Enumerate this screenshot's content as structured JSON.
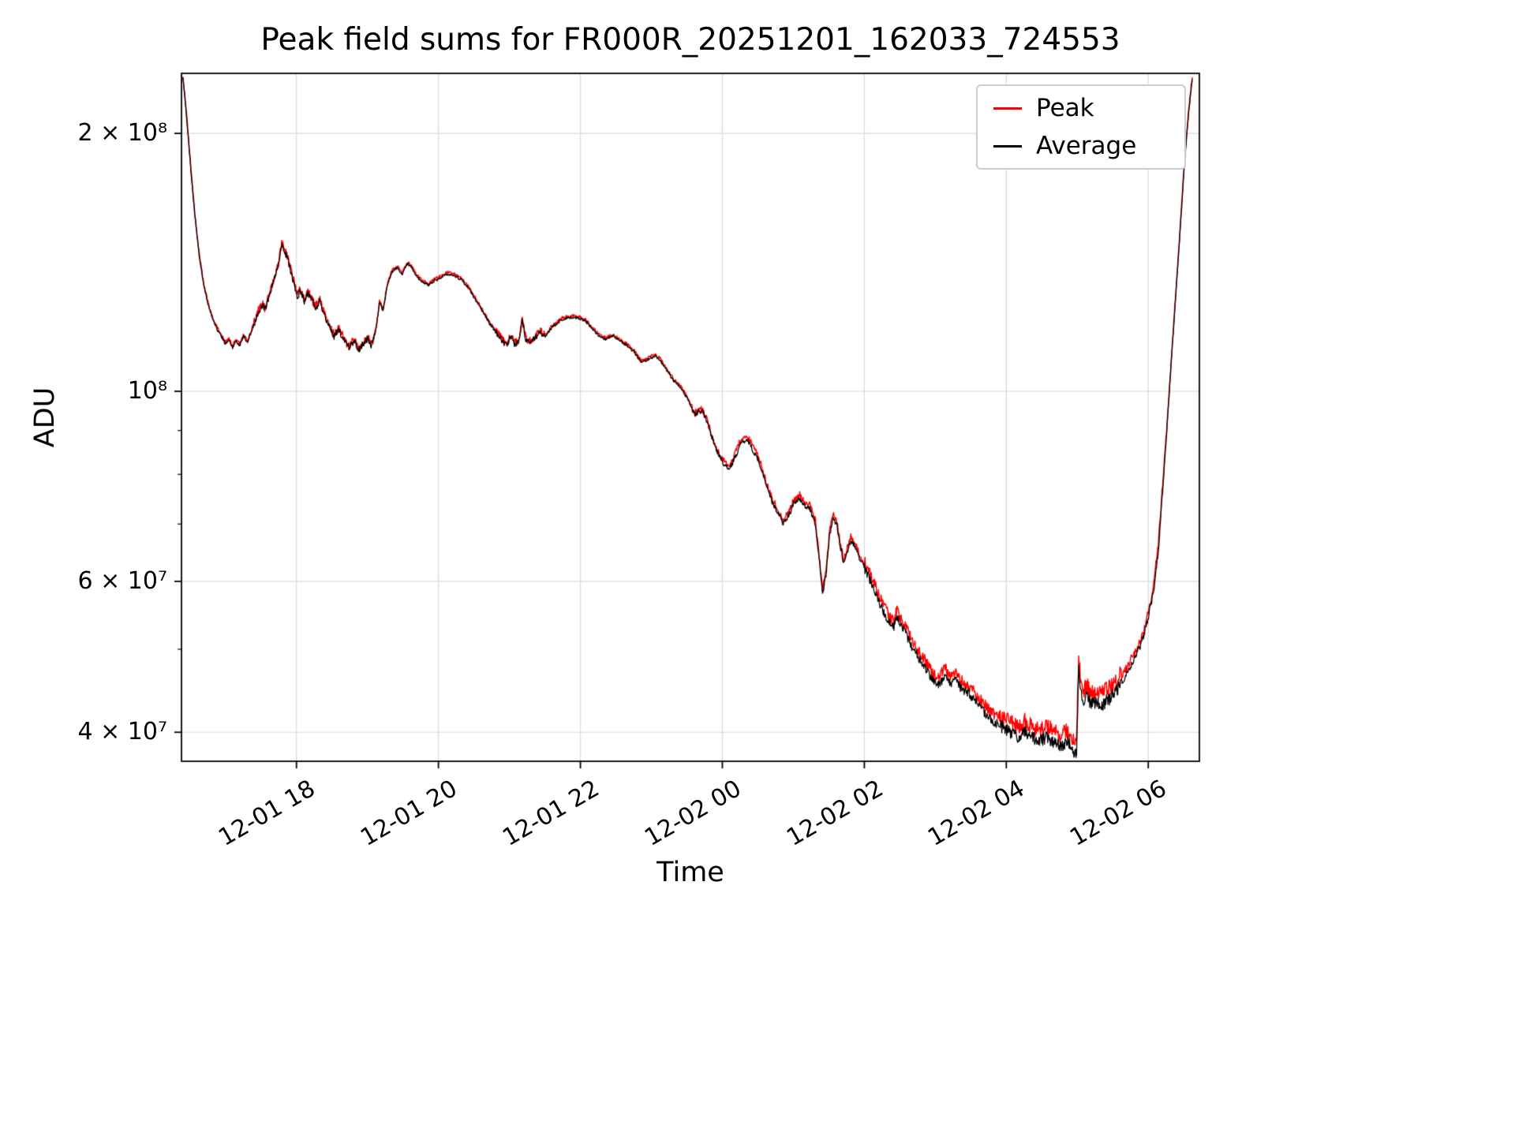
{
  "chart_data": {
    "type": "line",
    "title": "Peak field sums for FR000R_20251201_162033_724553",
    "xlabel": "Time",
    "ylabel": "ADU",
    "yscale": "log",
    "grid": true,
    "grid_color": "#d9d9d9",
    "legend_position": "upper right",
    "value_scale": 1000000,
    "values_unit": "millions of ADU",
    "x_reference": "hours since 12-01 16:00",
    "xlim_hours": [
      0.38,
      14.72
    ],
    "ylim": [
      37,
      235
    ],
    "xticks": [
      {
        "t": 2,
        "label": "12-01 18"
      },
      {
        "t": 4,
        "label": "12-01 20"
      },
      {
        "t": 6,
        "label": "12-01 22"
      },
      {
        "t": 8,
        "label": "12-02 00"
      },
      {
        "t": 10,
        "label": "12-02 02"
      },
      {
        "t": 12,
        "label": "12-02 04"
      },
      {
        "t": 14,
        "label": "12-02 06"
      }
    ],
    "yticks": [
      {
        "value": 200,
        "label": "2 × 10⁸"
      },
      {
        "value": 100,
        "label": "10⁸"
      },
      {
        "value": 60,
        "label": "6 × 10⁷"
      },
      {
        "value": 40,
        "label": "4 × 10⁷"
      }
    ],
    "yticks_minor": [
      50,
      70,
      80,
      90
    ],
    "series": [
      {
        "name": "Peak",
        "color": "#ff0000",
        "derived_from": "Average",
        "ratio_segments": [
          [
            0,
            8,
            1.004
          ],
          [
            8,
            10,
            1.01
          ],
          [
            10,
            11,
            1.018
          ],
          [
            11,
            12,
            1.022
          ],
          [
            12,
            13.62,
            1.03
          ],
          [
            13.62,
            14.25,
            1.016
          ],
          [
            14.25,
            14.75,
            1.005
          ]
        ]
      },
      {
        "name": "Average",
        "color": "#000000",
        "points": [
          [
            0.4,
            232
          ],
          [
            0.44,
            215
          ],
          [
            0.48,
            196
          ],
          [
            0.52,
            178
          ],
          [
            0.57,
            160
          ],
          [
            0.63,
            144
          ],
          [
            0.7,
            132
          ],
          [
            0.78,
            124
          ],
          [
            0.86,
            119
          ],
          [
            0.94,
            116
          ],
          [
            1.0,
            113.5
          ],
          [
            1.05,
            115
          ],
          [
            1.1,
            112.5
          ],
          [
            1.15,
            114.5
          ],
          [
            1.2,
            113
          ],
          [
            1.26,
            116
          ],
          [
            1.31,
            114
          ],
          [
            1.36,
            117
          ],
          [
            1.42,
            121
          ],
          [
            1.47,
            124
          ],
          [
            1.52,
            126
          ],
          [
            1.56,
            124.5
          ],
          [
            1.61,
            129
          ],
          [
            1.66,
            133
          ],
          [
            1.71,
            137
          ],
          [
            1.75,
            141
          ],
          [
            1.79,
            148
          ],
          [
            1.83,
            146
          ],
          [
            1.87,
            143
          ],
          [
            1.91,
            139
          ],
          [
            1.96,
            134
          ],
          [
            2.01,
            129
          ],
          [
            2.06,
            131
          ],
          [
            2.11,
            127.5
          ],
          [
            2.16,
            130.5
          ],
          [
            2.21,
            128
          ],
          [
            2.27,
            125
          ],
          [
            2.33,
            127.5
          ],
          [
            2.39,
            123
          ],
          [
            2.46,
            119
          ],
          [
            2.53,
            116
          ],
          [
            2.6,
            118
          ],
          [
            2.67,
            114.5
          ],
          [
            2.74,
            112.5
          ],
          [
            2.81,
            114.5
          ],
          [
            2.88,
            112
          ],
          [
            2.94,
            113.5
          ],
          [
            3.0,
            115
          ],
          [
            3.06,
            113
          ],
          [
            3.12,
            118
          ],
          [
            3.17,
            127
          ],
          [
            3.22,
            124
          ],
          [
            3.28,
            133
          ],
          [
            3.35,
            138
          ],
          [
            3.42,
            139.5
          ],
          [
            3.49,
            137
          ],
          [
            3.56,
            141
          ],
          [
            3.62,
            139.5
          ],
          [
            3.7,
            136
          ],
          [
            3.78,
            134
          ],
          [
            3.86,
            133
          ],
          [
            3.94,
            134.5
          ],
          [
            4.02,
            135.5
          ],
          [
            4.12,
            137
          ],
          [
            4.22,
            136.5
          ],
          [
            4.32,
            135
          ],
          [
            4.42,
            132
          ],
          [
            4.52,
            128
          ],
          [
            4.62,
            124
          ],
          [
            4.72,
            120
          ],
          [
            4.82,
            117
          ],
          [
            4.9,
            114.5
          ],
          [
            4.97,
            113
          ],
          [
            5.02,
            116
          ],
          [
            5.07,
            113.5
          ],
          [
            5.13,
            114
          ],
          [
            5.18,
            121
          ],
          [
            5.23,
            115
          ],
          [
            5.29,
            114
          ],
          [
            5.36,
            115.5
          ],
          [
            5.43,
            117
          ],
          [
            5.51,
            116
          ],
          [
            5.59,
            118.5
          ],
          [
            5.67,
            120
          ],
          [
            5.76,
            121.5
          ],
          [
            5.86,
            122
          ],
          [
            5.96,
            121.8
          ],
          [
            6.06,
            121
          ],
          [
            6.16,
            118.5
          ],
          [
            6.26,
            116
          ],
          [
            6.36,
            115
          ],
          [
            6.46,
            116
          ],
          [
            6.56,
            114.5
          ],
          [
            6.66,
            113
          ],
          [
            6.76,
            111
          ],
          [
            6.86,
            108
          ],
          [
            6.96,
            109
          ],
          [
            7.06,
            110
          ],
          [
            7.13,
            108.5
          ],
          [
            7.21,
            106
          ],
          [
            7.31,
            103
          ],
          [
            7.41,
            101
          ],
          [
            7.51,
            98
          ],
          [
            7.61,
            94
          ],
          [
            7.71,
            95
          ],
          [
            7.79,
            92
          ],
          [
            7.86,
            88
          ],
          [
            7.93,
            85
          ],
          [
            8.01,
            82.5
          ],
          [
            8.09,
            81
          ],
          [
            8.16,
            83
          ],
          [
            8.26,
            87
          ],
          [
            8.34,
            88
          ],
          [
            8.41,
            86
          ],
          [
            8.51,
            83
          ],
          [
            8.61,
            78
          ],
          [
            8.71,
            74
          ],
          [
            8.79,
            72
          ],
          [
            8.86,
            70
          ],
          [
            8.93,
            71.5
          ],
          [
            9.01,
            74
          ],
          [
            9.09,
            75
          ],
          [
            9.16,
            73.5
          ],
          [
            9.23,
            73
          ],
          [
            9.31,
            70
          ],
          [
            9.36,
            64
          ],
          [
            9.41,
            58
          ],
          [
            9.46,
            61
          ],
          [
            9.51,
            68
          ],
          [
            9.56,
            71
          ],
          [
            9.61,
            70
          ],
          [
            9.66,
            66
          ],
          [
            9.71,
            63
          ],
          [
            9.76,
            65
          ],
          [
            9.81,
            67
          ],
          [
            9.86,
            66
          ],
          [
            9.93,
            64
          ],
          [
            10.01,
            62
          ],
          [
            10.09,
            60
          ],
          [
            10.16,
            58
          ],
          [
            10.26,
            55.5
          ],
          [
            10.33,
            54
          ],
          [
            10.41,
            53
          ],
          [
            10.46,
            54.5
          ],
          [
            10.51,
            53.5
          ],
          [
            10.59,
            52
          ],
          [
            10.66,
            50.5
          ],
          [
            10.76,
            49
          ],
          [
            10.86,
            47.5
          ],
          [
            10.96,
            46
          ],
          [
            11.06,
            45.5
          ],
          [
            11.13,
            46.5
          ],
          [
            11.21,
            45.5
          ],
          [
            11.29,
            46
          ],
          [
            11.36,
            45
          ],
          [
            11.46,
            44.5
          ],
          [
            11.56,
            43.5
          ],
          [
            11.66,
            42.5
          ],
          [
            11.76,
            41.5
          ],
          [
            11.86,
            41
          ],
          [
            11.96,
            40.5
          ],
          [
            12.06,
            40
          ],
          [
            12.16,
            39.5
          ],
          [
            12.26,
            40
          ],
          [
            12.36,
            39.5
          ],
          [
            12.46,
            39
          ],
          [
            12.56,
            39.5
          ],
          [
            12.66,
            39
          ],
          [
            12.76,
            38.5
          ],
          [
            12.86,
            39
          ],
          [
            12.93,
            38.2
          ],
          [
            12.99,
            37.6
          ],
          [
            13.02,
            48
          ],
          [
            13.05,
            44.5
          ],
          [
            13.09,
            43.5
          ],
          [
            13.14,
            44
          ],
          [
            13.19,
            43
          ],
          [
            13.27,
            43.5
          ],
          [
            13.34,
            43
          ],
          [
            13.41,
            43.5
          ],
          [
            13.49,
            44
          ],
          [
            13.57,
            45
          ],
          [
            13.64,
            46
          ],
          [
            13.71,
            47
          ],
          [
            13.79,
            48.5
          ],
          [
            13.87,
            50
          ],
          [
            13.94,
            52
          ],
          [
            14.01,
            55
          ],
          [
            14.07,
            58
          ],
          [
            14.14,
            65
          ],
          [
            14.21,
            78
          ],
          [
            14.28,
            95
          ],
          [
            14.36,
            120
          ],
          [
            14.44,
            150
          ],
          [
            14.51,
            185
          ],
          [
            14.57,
            212
          ],
          [
            14.62,
            232
          ]
        ]
      }
    ],
    "noise_segments": [
      [
        0.3,
        1.4,
        0.004
      ],
      [
        1.4,
        3.12,
        0.009
      ],
      [
        3.12,
        4.8,
        0.0035
      ],
      [
        4.8,
        5.5,
        0.008
      ],
      [
        5.5,
        7.55,
        0.0035
      ],
      [
        7.55,
        10.0,
        0.007
      ],
      [
        10.0,
        11.9,
        0.012
      ],
      [
        11.9,
        13.62,
        0.017
      ],
      [
        13.62,
        14.2,
        0.009
      ],
      [
        14.2,
        14.75,
        0.004
      ]
    ]
  }
}
